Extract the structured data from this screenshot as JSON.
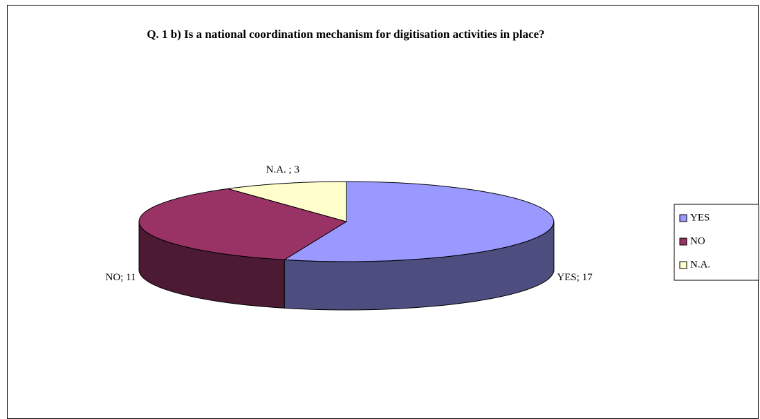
{
  "chart_data": {
    "type": "pie",
    "title": "Q. 1 b) Is a national coordination mechanism for digitisation activities in place?",
    "categories": [
      "YES",
      "NO",
      "N.A."
    ],
    "values": [
      17,
      11,
      3
    ],
    "value_labels": [
      "YES; 17",
      "NO; 11",
      "N.A. ; 3"
    ],
    "colors": [
      "#9999ff",
      "#993366",
      "#ffffcc"
    ],
    "legend": "right"
  }
}
